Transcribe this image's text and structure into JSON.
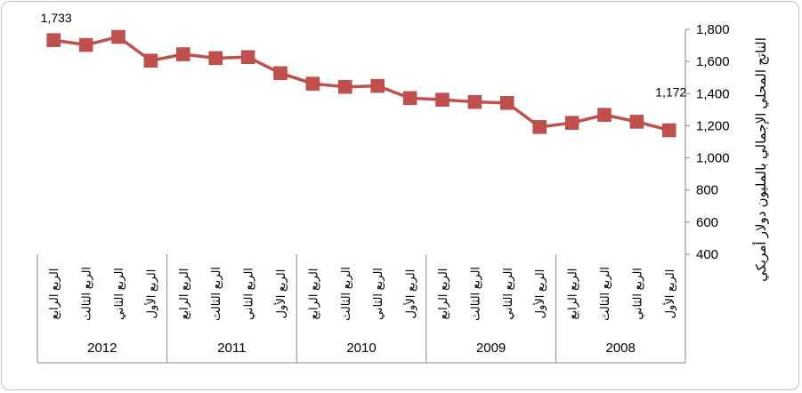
{
  "chart_data": {
    "type": "line",
    "title": "",
    "xlabel": "",
    "ylabel": "الناتج المحلي الإجمالي بالمليون دولار أمريكي",
    "ylim": [
      400,
      1800
    ],
    "yticks": [
      400,
      600,
      800,
      1000,
      1200,
      1400,
      1600,
      1800
    ],
    "ytick_labels": [
      "400",
      "600",
      "800",
      "1,000",
      "1,200",
      "1,400",
      "1,600",
      "1,800"
    ],
    "y_axis_side": "right",
    "x_reversed": true,
    "grid": false,
    "legend": "none",
    "groups": [
      "2008",
      "2009",
      "2010",
      "2011",
      "2012"
    ],
    "group_size": 4,
    "quarter_labels": [
      "الربع الأول",
      "الربع الثاني",
      "الربع الثالث",
      "الربع الرابع"
    ],
    "series": [
      {
        "values": [
          1172,
          1225,
          1268,
          1218,
          1192,
          1342,
          1348,
          1362,
          1372,
          1448,
          1442,
          1462,
          1527,
          1627,
          1621,
          1645,
          1605,
          1753,
          1703,
          1733
        ],
        "color": "#c0504d"
      }
    ],
    "data_labels": [
      {
        "index": 0,
        "text": "1,172"
      },
      {
        "index": 19,
        "text": "1,733"
      }
    ]
  }
}
